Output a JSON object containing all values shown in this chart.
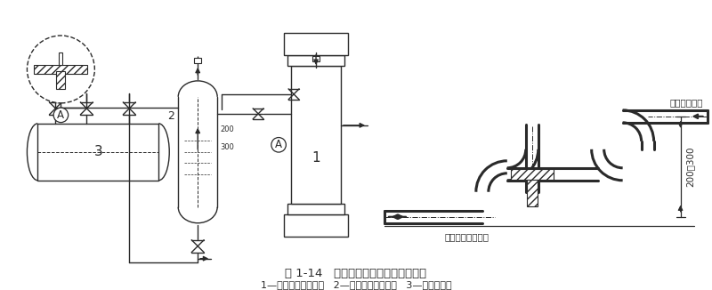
{
  "title_main": "图 1-14   洗涤式氨油分离器安装示意图",
  "title_sub": "1—立式壳管式冷凝器   2—洗涤式氨油分离器   3—高压贮液桶",
  "bg_color": "#ffffff",
  "line_color": "#2a2a2a",
  "label_condenser_out": "冷凝器出液管",
  "label_separator_in": "油氨分离器进液管",
  "dim_label": "200～300",
  "num_1": "1",
  "num_2": "2",
  "num_3": "3"
}
